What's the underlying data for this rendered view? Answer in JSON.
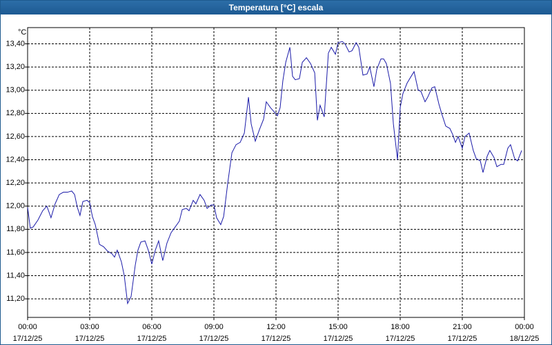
{
  "chart_data": {
    "type": "line",
    "title": "Temperatura [°C] escala",
    "ylabel": "°C",
    "x": [
      0,
      0.13,
      0.27,
      0.5,
      0.73,
      0.93,
      1.13,
      1.33,
      1.53,
      1.73,
      1.93,
      2.13,
      2.27,
      2.4,
      2.53,
      2.67,
      2.87,
      3,
      3.13,
      3.27,
      3.47,
      3.67,
      3.87,
      4.07,
      4.2,
      4.33,
      4.53,
      4.67,
      4.83,
      5,
      5.2,
      5.33,
      5.47,
      5.67,
      5.83,
      6,
      6.17,
      6.33,
      6.53,
      6.73,
      6.93,
      7.13,
      7.33,
      7.47,
      7.67,
      7.8,
      8,
      8.13,
      8.33,
      8.53,
      8.67,
      8.87,
      9,
      9.13,
      9.33,
      9.47,
      9.67,
      9.87,
      10.07,
      10.27,
      10.47,
      10.67,
      10.8,
      11,
      11.2,
      11.4,
      11.53,
      11.73,
      11.93,
      12.07,
      12.2,
      12.33,
      12.47,
      12.67,
      12.8,
      12.93,
      13.13,
      13.27,
      13.47,
      13.67,
      13.87,
      14,
      14.13,
      14.33,
      14.53,
      14.67,
      14.87,
      15,
      15.2,
      15.33,
      15.53,
      15.67,
      15.87,
      16,
      16.2,
      16.4,
      16.53,
      16.73,
      16.87,
      17.07,
      17.2,
      17.33,
      17.53,
      17.67,
      17.87,
      18,
      18.13,
      18.33,
      18.53,
      18.67,
      18.87,
      19,
      19.2,
      19.33,
      19.53,
      19.67,
      19.87,
      20,
      20.2,
      20.4,
      20.53,
      20.67,
      20.8,
      21,
      21.13,
      21.33,
      21.53,
      21.67,
      21.87,
      22,
      22.2,
      22.33,
      22.53,
      22.67,
      22.87,
      23,
      23.2,
      23.33,
      23.53,
      23.67,
      23.87
    ],
    "values": [
      11.99,
      11.81,
      11.82,
      11.88,
      11.96,
      12.0,
      11.9,
      12.02,
      12.1,
      12.12,
      12.12,
      12.13,
      12.1,
      11.99,
      11.92,
      12.04,
      12.05,
      12.03,
      11.91,
      11.84,
      11.67,
      11.65,
      11.61,
      11.59,
      11.56,
      11.62,
      11.52,
      11.4,
      11.16,
      11.22,
      11.49,
      11.62,
      11.69,
      11.7,
      11.62,
      11.5,
      11.62,
      11.7,
      11.53,
      11.68,
      11.77,
      11.82,
      11.87,
      11.97,
      11.98,
      11.96,
      12.05,
      12.02,
      12.1,
      12.05,
      11.98,
      12.01,
      12.01,
      11.9,
      11.84,
      11.91,
      12.2,
      12.46,
      12.53,
      12.55,
      12.63,
      12.94,
      12.71,
      12.56,
      12.66,
      12.75,
      12.9,
      12.85,
      12.81,
      12.78,
      12.85,
      13.08,
      13.24,
      13.37,
      13.12,
      13.09,
      13.1,
      13.24,
      13.28,
      13.23,
      13.15,
      12.74,
      12.87,
      12.77,
      13.32,
      13.37,
      13.31,
      13.41,
      13.42,
      13.4,
      13.33,
      13.34,
      13.41,
      13.37,
      13.13,
      13.14,
      13.2,
      13.03,
      13.18,
      13.27,
      13.27,
      13.23,
      13.06,
      12.71,
      12.4,
      12.85,
      12.97,
      13.06,
      13.12,
      13.16,
      13.0,
      12.99,
      12.9,
      12.94,
      13.02,
      13.03,
      12.88,
      12.8,
      12.69,
      12.67,
      12.62,
      12.55,
      12.6,
      12.5,
      12.6,
      12.63,
      12.48,
      12.41,
      12.39,
      12.29,
      12.43,
      12.48,
      12.42,
      12.34,
      12.36,
      12.36,
      12.5,
      12.53,
      12.41,
      12.39,
      12.48
    ],
    "color": "#1a1aa8",
    "xlim": [
      0,
      24
    ],
    "xticks": [
      {
        "value": 0,
        "label": "00:00"
      },
      {
        "value": 3,
        "label": "03:00"
      },
      {
        "value": 6,
        "label": "06:00"
      },
      {
        "value": 9,
        "label": "09:00"
      },
      {
        "value": 12,
        "label": "12:00"
      },
      {
        "value": 15,
        "label": "15:00"
      },
      {
        "value": 18,
        "label": "18:00"
      },
      {
        "value": 21,
        "label": "21:00"
      },
      {
        "value": 24,
        "label": "00:00"
      }
    ],
    "xtick_dates": [
      "17/12/25",
      "17/12/25",
      "17/12/25",
      "17/12/25",
      "17/12/25",
      "17/12/25",
      "17/12/25",
      "17/12/25",
      "18/12/25"
    ],
    "ylim": [
      11.04,
      13.54
    ],
    "yticks": [
      {
        "value": 11.2,
        "label": "11,20"
      },
      {
        "value": 11.4,
        "label": "11,40"
      },
      {
        "value": 11.6,
        "label": "11,60"
      },
      {
        "value": 11.8,
        "label": "11,80"
      },
      {
        "value": 12.0,
        "label": "12,00"
      },
      {
        "value": 12.2,
        "label": "12,20"
      },
      {
        "value": 12.4,
        "label": "12,40"
      },
      {
        "value": 12.6,
        "label": "12,60"
      },
      {
        "value": 12.8,
        "label": "12,80"
      },
      {
        "value": 13.0,
        "label": "13,00"
      },
      {
        "value": 13.2,
        "label": "13,20"
      },
      {
        "value": 13.4,
        "label": "13,40"
      }
    ],
    "grid": true
  }
}
